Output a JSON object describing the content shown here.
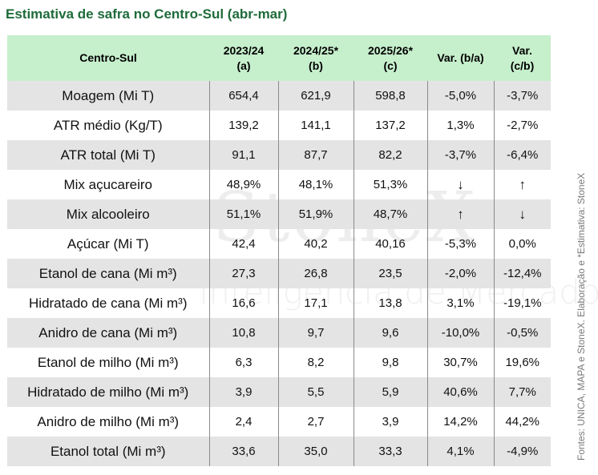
{
  "title": "Estimativa de safra no Centro-Sul (abr-mar)",
  "watermark": {
    "brand": "StoneX",
    "subtitle": "Inteligência de Mercado"
  },
  "header": {
    "label": "Centro-Sul",
    "col_a_year": "2023/24",
    "col_a_tag": "(a)",
    "col_b_year": "2024/25*",
    "col_b_tag": "(b)",
    "col_c_year": "2025/26*",
    "col_c_tag": "(c)",
    "var_ba": "Var.  (b/a)",
    "var_cb_1": "Var.",
    "var_cb_2": "(c/b)"
  },
  "rows": [
    {
      "label": "Moagem (Mi T)",
      "a": "654,4",
      "b": "621,9",
      "c": "598,8",
      "ba": "-5,0%",
      "cb": "-3,7%"
    },
    {
      "label": "ATR médio (Kg/T)",
      "a": "139,2",
      "b": "141,1",
      "c": "137,2",
      "ba": "1,3%",
      "cb": "-2,7%"
    },
    {
      "label": "ATR total (Mi T)",
      "a": "91,1",
      "b": "87,7",
      "c": "82,2",
      "ba": "-3,7%",
      "cb": "-6,4%"
    },
    {
      "label": "Mix açucareiro",
      "a": "48,9%",
      "b": "48,1%",
      "c": "51,3%",
      "ba": "↓",
      "cb": "↑"
    },
    {
      "label": "Mix alcooleiro",
      "a": "51,1%",
      "b": "51,9%",
      "c": "48,7%",
      "ba": "↑",
      "cb": "↓"
    },
    {
      "label": "Açúcar (Mi T)",
      "a": "42,4",
      "b": "40,2",
      "c": "40,16",
      "ba": "-5,3%",
      "cb": "0,0%"
    },
    {
      "label": "Etanol de cana (Mi m³)",
      "a": "27,3",
      "b": "26,8",
      "c": "23,5",
      "ba": "-2,0%",
      "cb": "-12,4%"
    },
    {
      "label": "Hidratado de cana (Mi m³)",
      "a": "16,6",
      "b": "17,1",
      "c": "13,8",
      "ba": "3,1%",
      "cb": "-19,1%"
    },
    {
      "label": "Anidro de cana (Mi m³)",
      "a": "10,8",
      "b": "9,7",
      "c": "9,6",
      "ba": "-10,0%",
      "cb": "-0,5%"
    },
    {
      "label": "Etanol de milho (Mi m³)",
      "a": "6,3",
      "b": "8,2",
      "c": "9,8",
      "ba": "30,7%",
      "cb": "19,6%"
    },
    {
      "label": "Hidratado de milho (Mi m³)",
      "a": "3,9",
      "b": "5,5",
      "c": "5,9",
      "ba": "40,6%",
      "cb": "7,7%"
    },
    {
      "label": "Anidro de milho (Mi m³)",
      "a": "2,4",
      "b": "2,7",
      "c": "3,9",
      "ba": "14,2%",
      "cb": "44,2%"
    },
    {
      "label": "Etanol total (Mi m³)",
      "a": "33,6",
      "b": "35,0",
      "c": "33,3",
      "ba": "4,1%",
      "cb": "-4,9%"
    }
  ],
  "source": "Fontes: UNICA, MAPA e StoneX. Elaboração e *Estimativa: StoneX",
  "colors": {
    "title": "#1e6b3a",
    "header_bg": "#c6efcc",
    "stripe_bg": "#e4e4e4"
  }
}
